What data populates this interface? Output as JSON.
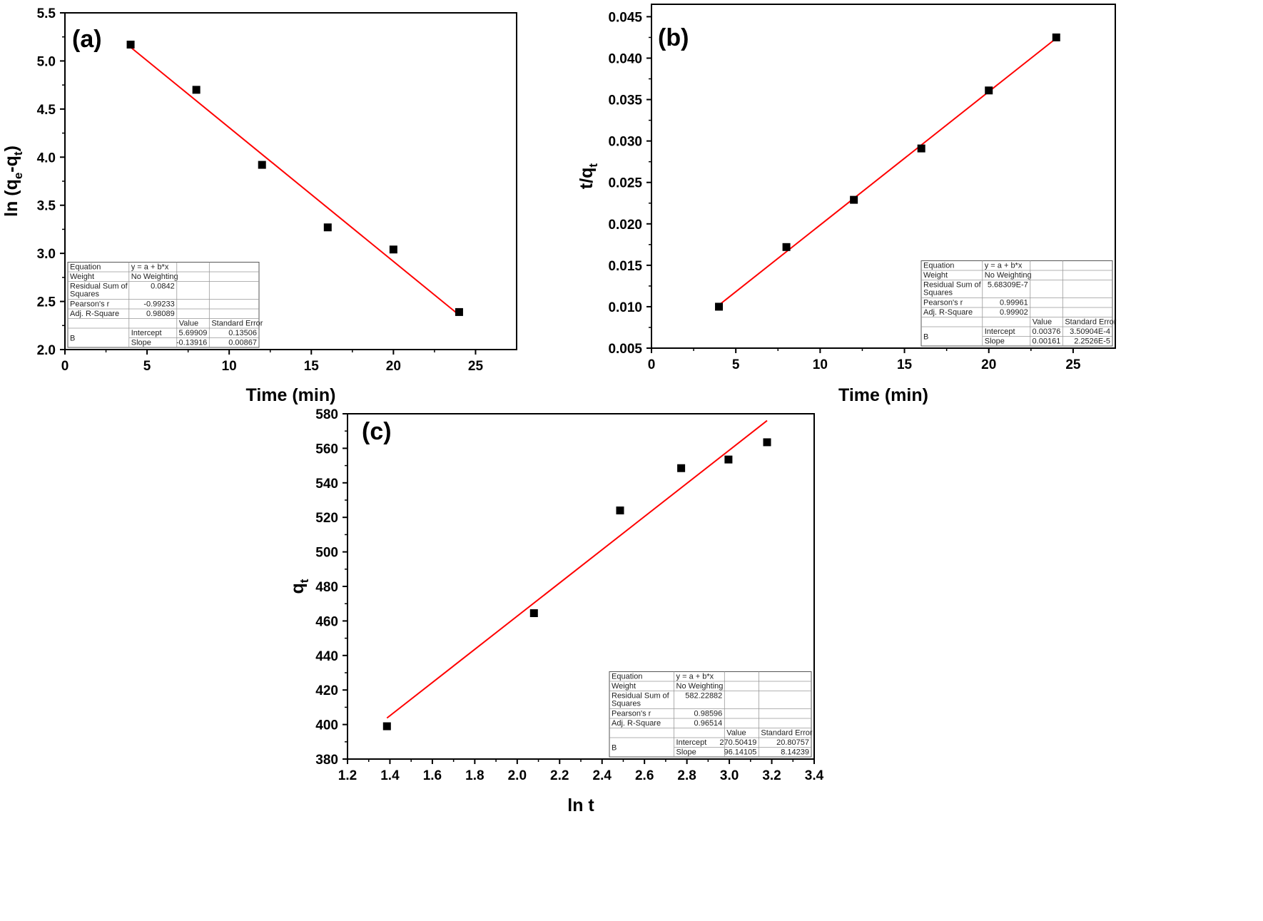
{
  "chart_data": [
    {
      "type": "scatter",
      "panel_label": "(a)",
      "xlabel": "Time (min)",
      "ylabel": {
        "main": "ln (q",
        "sub1": "e",
        "mid": "-q",
        "sub2": "t",
        "end": ")"
      },
      "xlim": [
        0,
        27.5
      ],
      "ylim": [
        2.0,
        5.5
      ],
      "xticks": [
        0,
        5,
        10,
        15,
        20,
        25
      ],
      "yticks": [
        2.0,
        2.5,
        3.0,
        3.5,
        4.0,
        4.5,
        5.0,
        5.5
      ],
      "ytick_decimals": 1,
      "x": [
        4,
        8,
        12,
        16,
        20,
        24
      ],
      "y": [
        5.17,
        4.7,
        3.92,
        3.27,
        3.04,
        2.39
      ],
      "fit": {
        "intercept": 5.69909,
        "slope": -0.13916,
        "x_range": [
          4,
          24
        ],
        "color": "#ff0000"
      },
      "grid": false,
      "stats_table": {
        "position": "bottom-left",
        "rows": [
          {
            "cells": [
              "Equation",
              "y = a + b*x",
              "",
              ""
            ]
          },
          {
            "cells": [
              "Weight",
              "No Weighting",
              "",
              ""
            ]
          },
          {
            "cells": [
              "Residual Sum of Squares",
              "0.0842",
              "",
              ""
            ]
          },
          {
            "cells": [
              "Pearson's r",
              "-0.99233",
              "",
              ""
            ]
          },
          {
            "cells": [
              "Adj. R-Square",
              "0.98089",
              "",
              ""
            ]
          },
          {
            "cells": [
              "",
              "",
              "Value",
              "Standard Error"
            ]
          },
          {
            "cells": [
              "B",
              "Intercept",
              "5.69909",
              "0.13506"
            ]
          },
          {
            "cells": [
              "",
              "Slope",
              "-0.13916",
              "0.00867"
            ]
          }
        ]
      }
    },
    {
      "type": "scatter",
      "panel_label": "(b)",
      "xlabel": "Time (min)",
      "ylabel": {
        "main": "t/q",
        "sub1": "t",
        "mid": "",
        "sub2": "",
        "end": ""
      },
      "xlim": [
        0,
        27.5
      ],
      "ylim": [
        0.005,
        0.0465
      ],
      "xticks": [
        0,
        5,
        10,
        15,
        20,
        25
      ],
      "yticks": [
        0.005,
        0.01,
        0.015,
        0.02,
        0.025,
        0.03,
        0.035,
        0.04,
        0.045
      ],
      "ytick_decimals": 3,
      "x": [
        4,
        8,
        12,
        16,
        20,
        24
      ],
      "y": [
        0.01,
        0.0172,
        0.0229,
        0.0291,
        0.0361,
        0.0425
      ],
      "fit": {
        "intercept": 0.00376,
        "slope": 0.00161,
        "x_range": [
          4,
          24
        ],
        "color": "#ff0000"
      },
      "grid": false,
      "stats_table": {
        "position": "bottom-right",
        "rows": [
          {
            "cells": [
              "Equation",
              "y = a + b*x",
              "",
              ""
            ]
          },
          {
            "cells": [
              "Weight",
              "No Weighting",
              "",
              ""
            ]
          },
          {
            "cells": [
              "Residual Sum of Squares",
              "5.68309E-7",
              "",
              ""
            ]
          },
          {
            "cells": [
              "Pearson's r",
              "0.99961",
              "",
              ""
            ]
          },
          {
            "cells": [
              "Adj. R-Square",
              "0.99902",
              "",
              ""
            ]
          },
          {
            "cells": [
              "",
              "",
              "Value",
              "Standard Error"
            ]
          },
          {
            "cells": [
              "B",
              "Intercept",
              "0.00376",
              "3.50904E-4"
            ]
          },
          {
            "cells": [
              "",
              "Slope",
              "0.00161",
              "2.2526E-5"
            ]
          }
        ]
      }
    },
    {
      "type": "scatter",
      "panel_label": "(c)",
      "xlabel": "ln t",
      "ylabel": {
        "main": "q",
        "sub1": "t",
        "mid": "",
        "sub2": "",
        "end": ""
      },
      "xlim": [
        1.2,
        3.4
      ],
      "ylim": [
        380,
        580
      ],
      "xticks": [
        1.2,
        1.4,
        1.6,
        1.8,
        2.0,
        2.2,
        2.4,
        2.6,
        2.8,
        3.0,
        3.2,
        3.4
      ],
      "yticks": [
        380,
        400,
        420,
        440,
        460,
        480,
        500,
        520,
        540,
        560,
        580
      ],
      "xtick_decimals": 1,
      "ytick_decimals": 0,
      "x": [
        1.386,
        2.079,
        2.485,
        2.773,
        2.996,
        3.178
      ],
      "y": [
        399,
        464.5,
        524,
        548.5,
        553.5,
        563.5
      ],
      "fit": {
        "intercept": 270.50419,
        "slope": 96.14105,
        "x_range": [
          1.386,
          3.178
        ],
        "color": "#ff0000"
      },
      "grid": false,
      "stats_table": {
        "position": "bottom-right",
        "rows": [
          {
            "cells": [
              "Equation",
              "y = a + b*x",
              "",
              ""
            ]
          },
          {
            "cells": [
              "Weight",
              "No Weighting",
              "",
              ""
            ]
          },
          {
            "cells": [
              "Residual Sum of Squares",
              "582.22882",
              "",
              ""
            ]
          },
          {
            "cells": [
              "Pearson's r",
              "0.98596",
              "",
              ""
            ]
          },
          {
            "cells": [
              "Adj. R-Square",
              "0.96514",
              "",
              ""
            ]
          },
          {
            "cells": [
              "",
              "",
              "Value",
              "Standard Error"
            ]
          },
          {
            "cells": [
              "B",
              "Intercept",
              "270.50419",
              "20.80757"
            ]
          },
          {
            "cells": [
              "",
              "Slope",
              "96.14105",
              "8.14239"
            ]
          }
        ]
      }
    }
  ]
}
